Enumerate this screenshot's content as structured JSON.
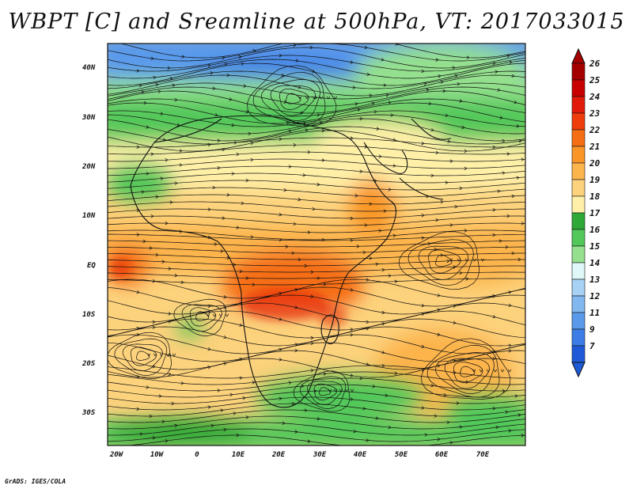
{
  "title": "WBPT [C] and Sreamline at 500hPa, VT: 2017033015",
  "footer": "GrADS: IGES/COLA",
  "map": {
    "lat_labels": [
      "40N",
      "30N",
      "20N",
      "10N",
      "EQ",
      "10S",
      "20S",
      "30S"
    ],
    "lon_labels": [
      "20W",
      "10W",
      "0",
      "10E",
      "20E",
      "30E",
      "40E",
      "50E",
      "60E",
      "70E"
    ]
  },
  "colorbar": {
    "levels": [
      {
        "label": "26",
        "color": "#a50000"
      },
      {
        "label": "25",
        "color": "#c80000"
      },
      {
        "label": "24",
        "color": "#e11a0a"
      },
      {
        "label": "23",
        "color": "#f03c0a"
      },
      {
        "label": "22",
        "color": "#f56e14"
      },
      {
        "label": "21",
        "color": "#fa9628"
      },
      {
        "label": "20",
        "color": "#fcb44c"
      },
      {
        "label": "19",
        "color": "#fdd27c"
      },
      {
        "label": "18",
        "color": "#fff0a8"
      },
      {
        "label": "17",
        "color": "#2ea836"
      },
      {
        "label": "16",
        "color": "#52c85a"
      },
      {
        "label": "15",
        "color": "#94e08e"
      },
      {
        "label": "14",
        "color": "#dff7f7"
      },
      {
        "label": "13",
        "color": "#a8d2f5"
      },
      {
        "label": "12",
        "color": "#82b8f0"
      },
      {
        "label": "11",
        "color": "#5a9aeb"
      },
      {
        "label": "9",
        "color": "#3c7ee6"
      },
      {
        "label": "7",
        "color": "#1e5ad7"
      }
    ],
    "top_arrow_color": "#a50000",
    "bottom_arrow_color": "#1e5ad7"
  }
}
